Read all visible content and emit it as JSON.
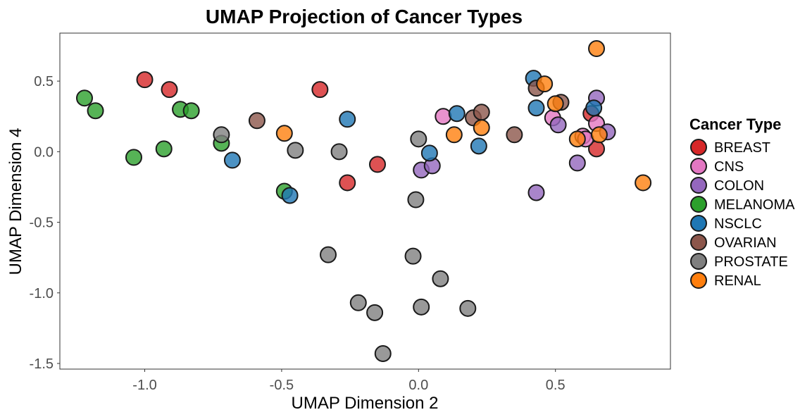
{
  "chart_data": {
    "type": "scatter",
    "title": "UMAP Projection of Cancer Types",
    "xlabel": "UMAP Dimension 2",
    "ylabel": "UMAP Dimension 4",
    "xlim": [
      -1.31,
      0.92
    ],
    "ylim": [
      -1.54,
      0.84
    ],
    "xticks": [
      -1.0,
      -0.5,
      0.0,
      0.5
    ],
    "xtick_labels": [
      "-1.0",
      "-0.5",
      "0.0",
      "0.5"
    ],
    "yticks": [
      0.5,
      0.0,
      -0.5,
      -1.0,
      -1.5
    ],
    "ytick_labels": [
      "0.5",
      "0.0",
      "-0.5",
      "-1.0",
      "-1.5"
    ],
    "grid": false,
    "legend": {
      "title": "Cancer Type",
      "placement": "right"
    },
    "series": [
      {
        "name": "BREAST",
        "color": "#d62728",
        "x": [
          -1.0,
          -0.91,
          -0.36,
          -0.26,
          -0.15,
          0.63,
          0.65
        ],
        "y": [
          0.51,
          0.44,
          0.44,
          -0.22,
          -0.09,
          0.27,
          0.02
        ]
      },
      {
        "name": "CNS",
        "color": "#e377c2",
        "x": [
          0.09,
          0.49,
          0.6,
          0.61,
          0.65
        ],
        "y": [
          0.25,
          0.24,
          0.11,
          0.09,
          0.2
        ]
      },
      {
        "name": "COLON",
        "color": "#9467bd",
        "x": [
          0.01,
          0.05,
          0.43,
          0.51,
          0.58,
          0.65,
          0.69
        ],
        "y": [
          -0.13,
          -0.1,
          -0.29,
          0.19,
          -0.08,
          0.38,
          0.14
        ]
      },
      {
        "name": "MELANOMA",
        "color": "#2ca02c",
        "x": [
          -1.22,
          -1.18,
          -1.04,
          -0.93,
          -0.87,
          -0.83,
          -0.72,
          -0.49
        ],
        "y": [
          0.38,
          0.29,
          -0.04,
          0.02,
          0.3,
          0.29,
          0.06,
          -0.28
        ]
      },
      {
        "name": "NSCLC",
        "color": "#1f77b4",
        "x": [
          -0.68,
          -0.47,
          -0.26,
          0.04,
          0.14,
          0.22,
          0.42,
          0.43,
          0.64
        ],
        "y": [
          -0.06,
          -0.31,
          0.23,
          -0.01,
          0.27,
          0.04,
          0.52,
          0.31,
          0.31
        ]
      },
      {
        "name": "OVARIAN",
        "color": "#8c564b",
        "x": [
          -0.59,
          0.2,
          0.23,
          0.35,
          0.43,
          0.52
        ],
        "y": [
          0.22,
          0.24,
          0.28,
          0.12,
          0.45,
          0.35
        ]
      },
      {
        "name": "PROSTATE",
        "color": "#7f7f7f",
        "x": [
          -0.72,
          -0.45,
          -0.33,
          -0.29,
          -0.22,
          -0.16,
          -0.13,
          -0.02,
          -0.01,
          0.0,
          0.01,
          0.08,
          0.18
        ],
        "y": [
          0.12,
          0.01,
          -0.73,
          0.0,
          -1.07,
          -1.14,
          -1.43,
          -0.74,
          -0.34,
          0.09,
          -1.1,
          -0.9,
          -1.11
        ]
      },
      {
        "name": "RENAL",
        "color": "#ff7f0e",
        "x": [
          -0.49,
          0.13,
          0.23,
          0.46,
          0.5,
          0.58,
          0.65,
          0.66,
          0.82
        ],
        "y": [
          0.13,
          0.12,
          0.17,
          0.48,
          0.34,
          0.09,
          0.73,
          0.12,
          -0.22
        ]
      }
    ]
  }
}
